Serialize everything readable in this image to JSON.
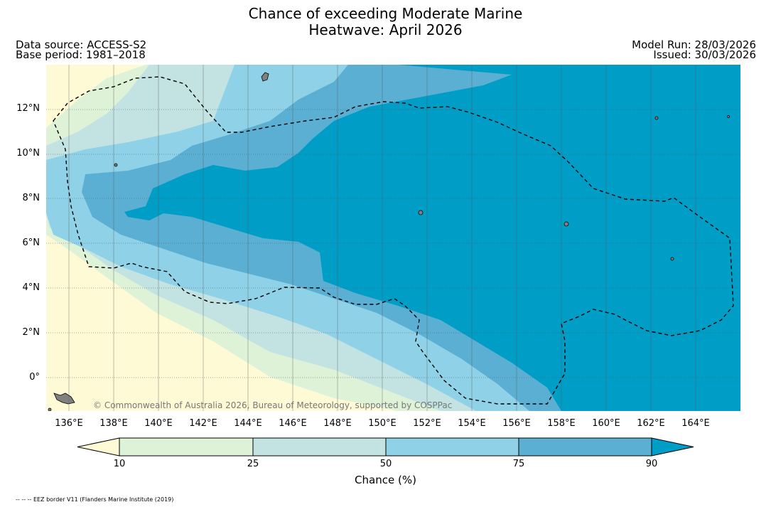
{
  "title": {
    "line1": "Chance of exceeding Moderate Marine",
    "line2": "Heatwave: April 2026"
  },
  "meta": {
    "data_source": "Data source: ACCESS-S2",
    "base_period": "Base period: 1981–2018",
    "model_run": "Model Run: 28/03/2026",
    "issued": "Issued: 30/03/2026"
  },
  "map": {
    "lat_labels": [
      "12°N",
      "10°N",
      "8°N",
      "6°N",
      "4°N",
      "2°N",
      "0°"
    ],
    "lon_labels": [
      "136°E",
      "138°E",
      "140°E",
      "142°E",
      "144°E",
      "146°E",
      "148°E",
      "150°E",
      "152°E",
      "154°E",
      "156°E",
      "158°E",
      "160°E",
      "162°E",
      "164°E"
    ],
    "copyright": "© Commonwealth of Australia 2026, Bureau of Meteorology, supported by COSPPac"
  },
  "colorbar": {
    "ticks": [
      "10",
      "25",
      "50",
      "75",
      "90"
    ],
    "label": "Chance (%)",
    "colors": {
      "lt10": "#fffad6",
      "c10_25": "#def2d8",
      "c25_50": "#c3e3e3",
      "c50_75": "#8fd2e8",
      "c75_90": "#5aafd2",
      "gt90": "#009dc6"
    }
  },
  "footnote": "-- -- -- EEZ border V11 (Flanders Marine Institute (2019)"
}
